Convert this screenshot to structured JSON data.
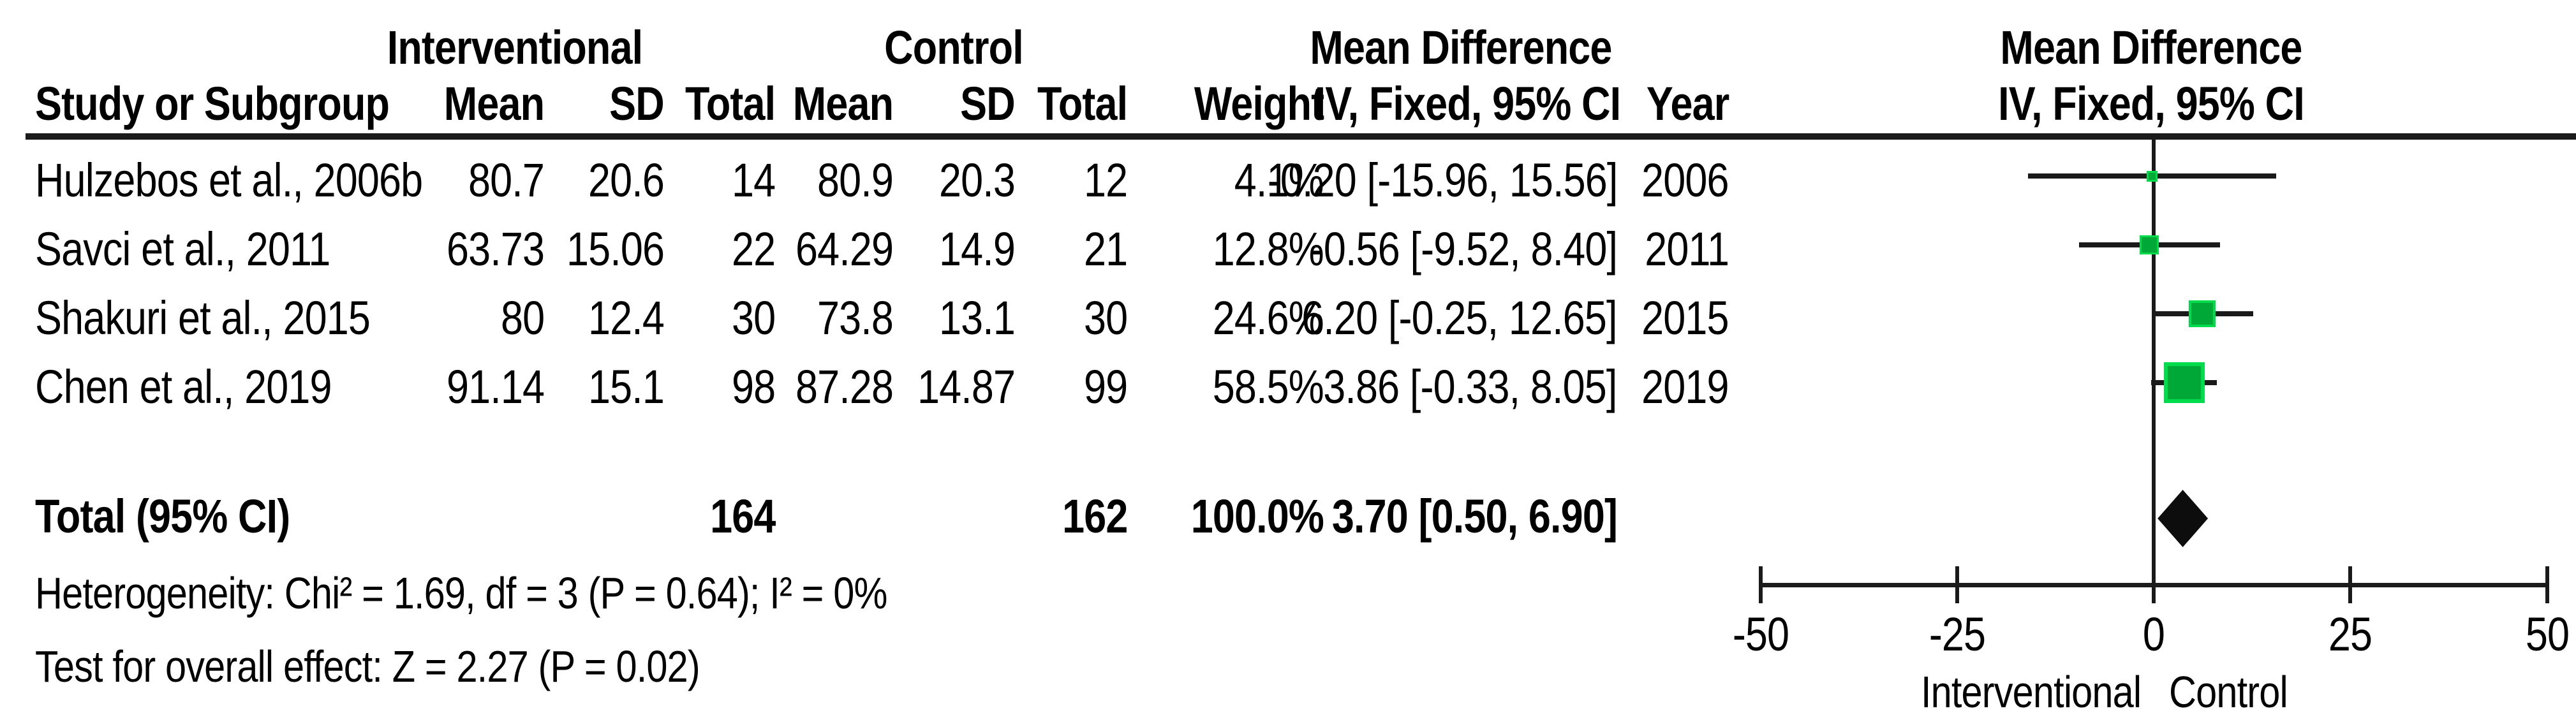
{
  "colors": {
    "marker_green": "#00a838",
    "marker_green_border": "#00dc4b",
    "line_black": "#1a1a1a",
    "diamond_black": "#0d0d0d"
  },
  "header": {
    "group1_label": "Interventional",
    "group2_label": "Control",
    "effect_label": "Mean Difference",
    "plot_effect_label": "Mean Difference",
    "cols": {
      "study": "Study or Subgroup",
      "mean1": "Mean",
      "sd1": "SD",
      "total1": "Total",
      "mean2": "Mean",
      "sd2": "SD",
      "total2": "Total",
      "weight": "Weight",
      "ci": "IV, Fixed, 95% CI",
      "year": "Year",
      "plot_ci": "IV, Fixed, 95% CI"
    }
  },
  "total_row": {
    "label": "Total (95% CI)",
    "total1": "164",
    "total2": "162",
    "weight": "100.0%",
    "ci_text": "3.70 [0.50, 6.90]"
  },
  "footnotes": {
    "heterogeneity": "Heterogeneity: Chi² = 1.69, df = 3 (P = 0.64); I² = 0%",
    "overall": "Test for overall effect: Z = 2.27 (P = 0.02)"
  },
  "chart_data": {
    "type": "forest",
    "effect_measure": "Mean Difference",
    "model": "IV, Fixed, 95% CI",
    "studies": [
      {
        "name": "Hulzebos et al., 2006b",
        "mean1": "80.7",
        "sd1": "20.6",
        "total1": "14",
        "mean2": "80.9",
        "sd2": "20.3",
        "total2": "12",
        "weight": "4.1%",
        "weight_pct": 4.1,
        "ci_text": "-0.20 [-15.96, 15.56]",
        "md": -0.2,
        "ci_low": -15.96,
        "ci_high": 15.56,
        "year": "2006"
      },
      {
        "name": "Savci et al., 2011",
        "mean1": "63.73",
        "sd1": "15.06",
        "total1": "22",
        "mean2": "64.29",
        "sd2": "14.9",
        "total2": "21",
        "weight": "12.8%",
        "weight_pct": 12.8,
        "ci_text": "-0.56 [-9.52, 8.40]",
        "md": -0.56,
        "ci_low": -9.52,
        "ci_high": 8.4,
        "year": "2011"
      },
      {
        "name": "Shakuri et al., 2015",
        "mean1": "80",
        "sd1": "12.4",
        "total1": "30",
        "mean2": "73.8",
        "sd2": "13.1",
        "total2": "30",
        "weight": "24.6%",
        "weight_pct": 24.6,
        "ci_text": "6.20 [-0.25, 12.65]",
        "md": 6.2,
        "ci_low": -0.25,
        "ci_high": 12.65,
        "year": "2015"
      },
      {
        "name": "Chen et al., 2019",
        "mean1": "91.14",
        "sd1": "15.1",
        "total1": "98",
        "mean2": "87.28",
        "sd2": "14.87",
        "total2": "99",
        "weight": "58.5%",
        "weight_pct": 58.5,
        "ci_text": "3.86 [-0.33, 8.05]",
        "md": 3.86,
        "ci_low": -0.33,
        "ci_high": 8.05,
        "year": "2019"
      }
    ],
    "total": {
      "md": 3.7,
      "ci_low": 0.5,
      "ci_high": 6.9
    },
    "heterogeneity": "Chi² = 1.69, df = 3 (P = 0.64); I² = 0%",
    "overall_effect": "Z = 2.27 (P = 0.02)",
    "x_axis": {
      "min": -50,
      "max": 50,
      "ticks": [
        -50,
        -25,
        0,
        25,
        50
      ],
      "left_label": "Interventional",
      "right_label": "Control"
    }
  }
}
